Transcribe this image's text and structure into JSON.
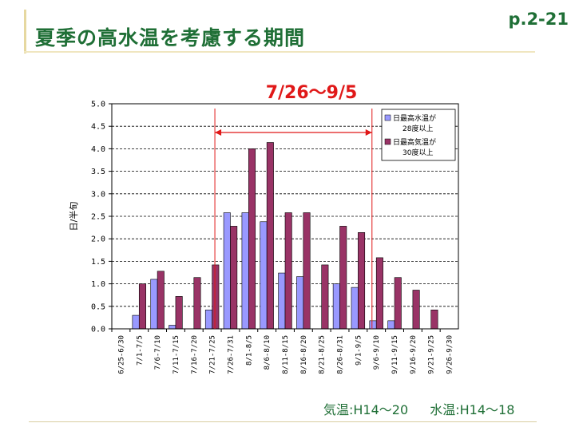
{
  "slide": {
    "title": "夏季の高水温を考慮する期間",
    "page_ref": "p.2-21",
    "period_label": "7/26〜9/5",
    "footnote_air": "気温:H14〜20",
    "footnote_water": "水温:H14〜18"
  },
  "chart_data": {
    "type": "bar",
    "title": "",
    "xlabel": "",
    "ylabel": "日/半旬",
    "ylim": [
      0,
      5
    ],
    "yticks": [
      "0.0",
      "0.5",
      "1.0",
      "1.5",
      "2.0",
      "2.5",
      "3.0",
      "3.5",
      "4.0",
      "4.5",
      "5.0"
    ],
    "grid": true,
    "legend_position": "top-right",
    "categories": [
      "6/25-6/30",
      "7/1-7/5",
      "7/6-7/10",
      "7/11-7/15",
      "7/16-7/20",
      "7/21-7/25",
      "7/26-7/31",
      "8/1-8/5",
      "8/6-8/10",
      "8/11-8/15",
      "8/16-8/20",
      "8/21-8/25",
      "8/26-8/31",
      "9/1-9/5",
      "9/6-9/10",
      "9/11-9/15",
      "9/16-9/20",
      "9/21-9/25",
      "9/26-9/30"
    ],
    "series": [
      {
        "name": "日最高水温が28度以上",
        "legend_lines": [
          "日最高水温が",
          "28度以上"
        ],
        "color": "#9999ff",
        "values": [
          0,
          0.3,
          1.1,
          0.08,
          0,
          0.42,
          2.58,
          2.58,
          2.38,
          1.24,
          1.16,
          0,
          1.0,
          0.92,
          0.18,
          0.18,
          0,
          0,
          0
        ]
      },
      {
        "name": "日最高気温が30度以上",
        "legend_lines": [
          "日最高気温が",
          "30度以上"
        ],
        "color": "#993366",
        "values": [
          0,
          1.0,
          1.28,
          0.72,
          1.14,
          1.42,
          2.28,
          4.0,
          4.14,
          2.58,
          2.58,
          1.42,
          2.28,
          2.14,
          1.58,
          1.14,
          0.86,
          0.42,
          0
        ]
      }
    ],
    "annotation": {
      "label": "7/26〜9/5",
      "from_category": "7/26-7/31",
      "to_category": "9/1-9/5",
      "color": "#e01818"
    }
  }
}
